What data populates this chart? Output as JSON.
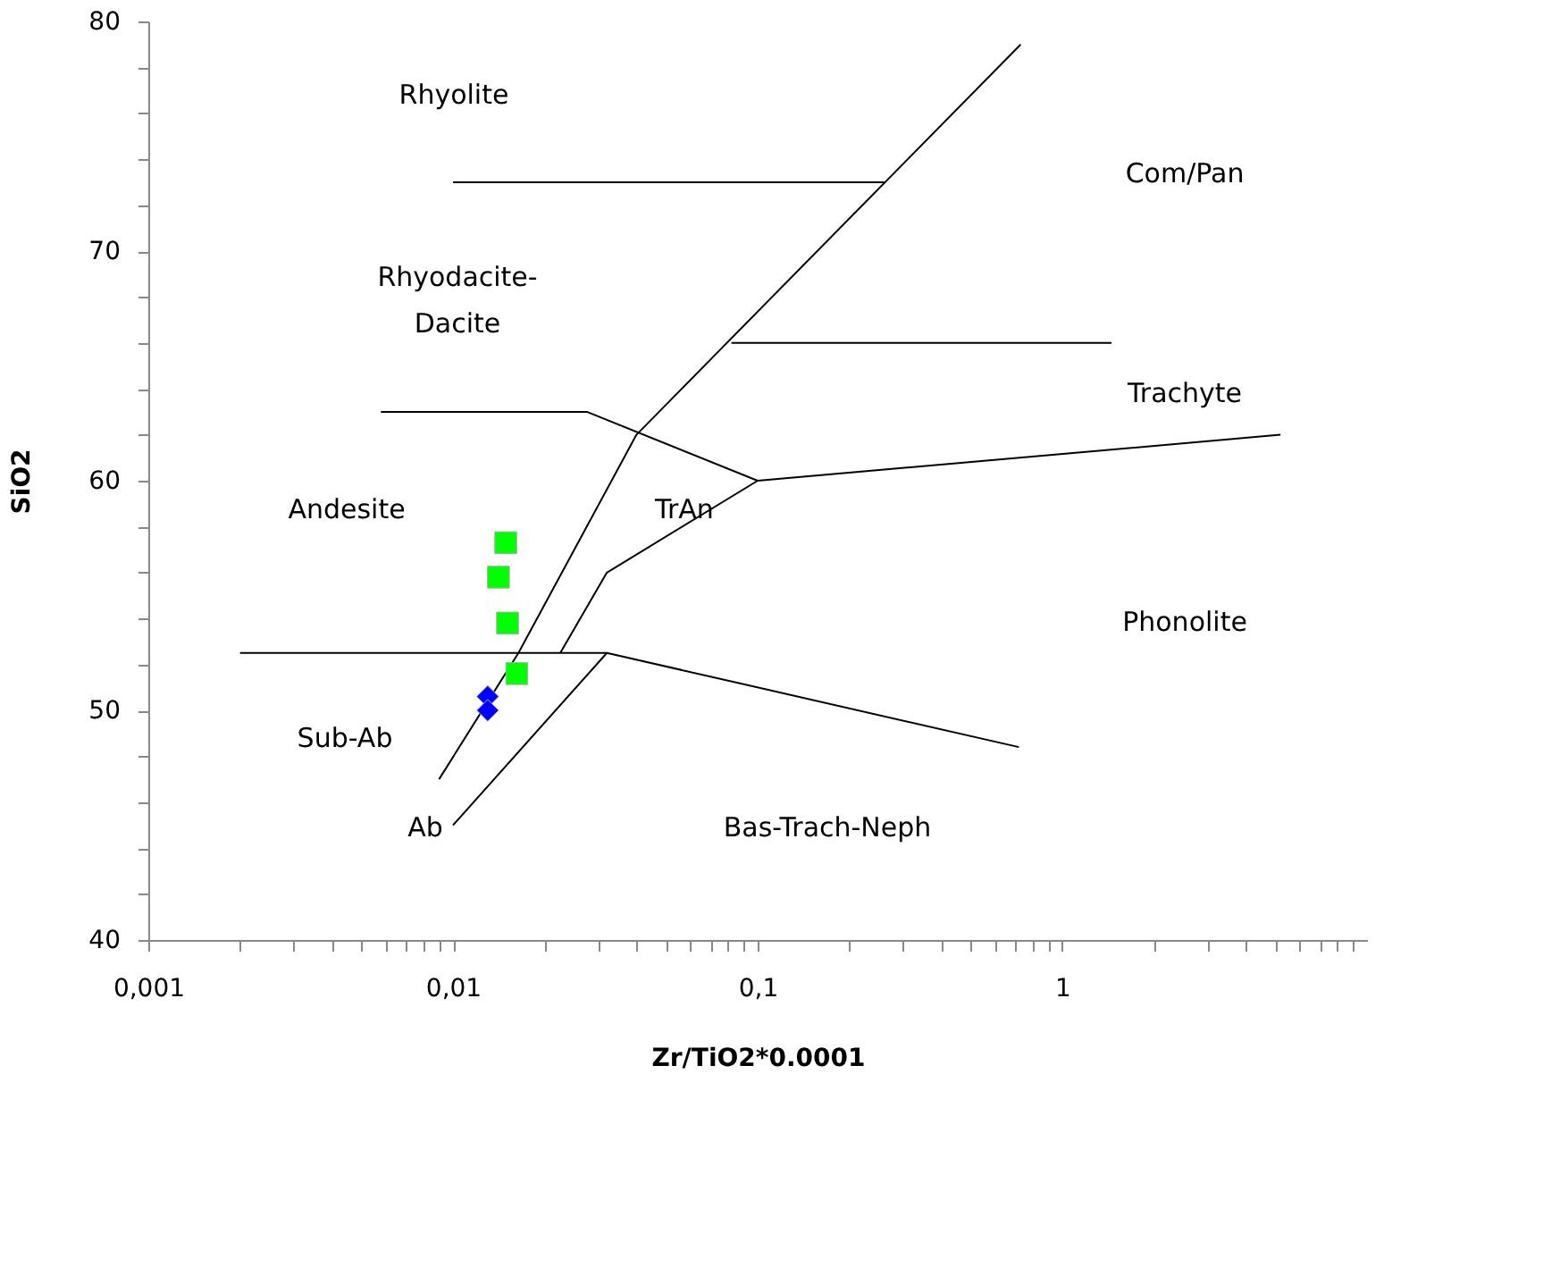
{
  "chart_data": {
    "type": "scatter",
    "xlabel": "Zr/TiO2*0.0001",
    "ylabel": "SiO2",
    "log": "x",
    "grid": false,
    "xlim": [
      0.001,
      10
    ],
    "ylim": [
      40,
      80
    ],
    "xticks": [
      {
        "value": 0.001,
        "label": "0,001"
      },
      {
        "value": 0.002,
        "label": null
      },
      {
        "value": 0.003,
        "label": null
      },
      {
        "value": 0.004,
        "label": null
      },
      {
        "value": 0.005,
        "label": null
      },
      {
        "value": 0.006,
        "label": null
      },
      {
        "value": 0.007,
        "label": null
      },
      {
        "value": 0.008,
        "label": null
      },
      {
        "value": 0.009,
        "label": null
      },
      {
        "value": 0.01,
        "label": "0,01"
      },
      {
        "value": 0.02,
        "label": null
      },
      {
        "value": 0.03,
        "label": null
      },
      {
        "value": 0.04,
        "label": null
      },
      {
        "value": 0.05,
        "label": null
      },
      {
        "value": 0.06,
        "label": null
      },
      {
        "value": 0.07,
        "label": null
      },
      {
        "value": 0.08,
        "label": null
      },
      {
        "value": 0.09,
        "label": null
      },
      {
        "value": 0.1,
        "label": "0,1"
      },
      {
        "value": 0.2,
        "label": null
      },
      {
        "value": 0.3,
        "label": null
      },
      {
        "value": 0.4,
        "label": null
      },
      {
        "value": 0.5,
        "label": null
      },
      {
        "value": 0.6,
        "label": null
      },
      {
        "value": 0.7,
        "label": null
      },
      {
        "value": 0.8,
        "label": null
      },
      {
        "value": 0.9,
        "label": null
      },
      1,
      {
        "value": 2,
        "label": null
      },
      {
        "value": 3,
        "label": null
      },
      {
        "value": 4,
        "label": null
      },
      {
        "value": 5,
        "label": null
      },
      {
        "value": 6,
        "label": null
      },
      {
        "value": 7,
        "label": null
      },
      {
        "value": 8,
        "label": null
      },
      {
        "value": 9,
        "label": null
      }
    ],
    "yticks": [
      40,
      {
        "value": 42,
        "label": null
      },
      {
        "value": 44,
        "label": null
      },
      {
        "value": 46,
        "label": null
      },
      {
        "value": 48,
        "label": null
      },
      50,
      {
        "value": 52,
        "label": null
      },
      {
        "value": 54,
        "label": null
      },
      {
        "value": 56,
        "label": null
      },
      {
        "value": 58,
        "label": null
      },
      60,
      {
        "value": 62,
        "label": null
      },
      {
        "value": 64,
        "label": null
      },
      {
        "value": 66,
        "label": null
      },
      {
        "value": 68,
        "label": null
      },
      70,
      {
        "value": 72,
        "label": null
      },
      {
        "value": 74,
        "label": null
      },
      {
        "value": 76,
        "label": null
      },
      {
        "value": 78,
        "label": null
      },
      80
    ],
    "series": [
      {
        "type": "line",
        "color": "#000000",
        "marker": "none",
        "x": [
          0.009,
          0.0164,
          0.04,
          0.73
        ],
        "values": [
          47,
          52.5,
          62,
          79
        ]
      },
      {
        "type": "line",
        "color": "#000000",
        "marker": "none",
        "x": [
          0.01,
          0.032,
          0.72
        ],
        "values": [
          45,
          52.5,
          48.4
        ]
      },
      {
        "type": "line",
        "color": "#000000",
        "marker": "none",
        "x": [
          0.002,
          0.032
        ],
        "values": [
          52.5,
          52.5
        ]
      },
      {
        "type": "line",
        "color": "#000000",
        "marker": "none",
        "x": [
          0.0225,
          0.032,
          0.1,
          5.2
        ],
        "values": [
          52.5,
          56,
          60,
          62
        ]
      },
      {
        "type": "line",
        "color": "#000000",
        "marker": "none",
        "x": [
          0.0058,
          0.0275,
          0.1
        ],
        "values": [
          63,
          63,
          60
        ]
      },
      {
        "type": "line",
        "color": "#000000",
        "marker": "none",
        "x": [
          0.082,
          1.45
        ],
        "values": [
          66,
          66
        ]
      },
      {
        "type": "line",
        "color": "#000000",
        "marker": "none",
        "x": [
          0.01,
          0.26
        ],
        "values": [
          73,
          73
        ]
      },
      {
        "color": "#00ff00",
        "marker": "square",
        "x": [
          0.0149,
          0.0141,
          0.0151,
          0.0162
        ],
        "values": [
          57.3,
          55.8,
          53.8,
          51.6
        ]
      },
      {
        "color": "#0000ff",
        "marker": "diamond",
        "x": [
          0.013,
          0.013
        ],
        "values": [
          50.6,
          50.0
        ]
      }
    ],
    "annotations": [
      "Rhyolite",
      "Com/Pan",
      "Rhyodacite-\nDacite",
      "Trachyte",
      "Andesite",
      "TrAn",
      "Phonolite",
      "Sub-Ab",
      "Ab",
      "Bas-Trach-Neph"
    ]
  }
}
